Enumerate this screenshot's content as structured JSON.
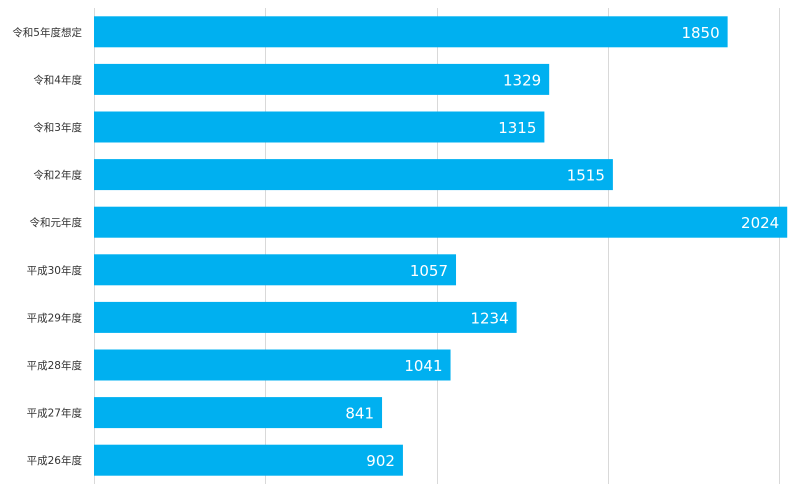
{
  "chart_data": {
    "type": "bar",
    "orientation": "horizontal",
    "categories": [
      "令和5年度想定",
      "令和4年度",
      "令和3年度",
      "令和2年度",
      "令和元年度",
      "平成30年度",
      "平成29年度",
      "平成28年度",
      "平成27年度",
      "平成26年度"
    ],
    "values": [
      1850,
      1329,
      1315,
      1515,
      2024,
      1057,
      1234,
      1041,
      841,
      902
    ],
    "xlim": [
      0,
      2000
    ],
    "grid": true,
    "bar_color": "#00b0f0",
    "label_color": "#ffffff",
    "data_labels": true,
    "legend": "none"
  }
}
